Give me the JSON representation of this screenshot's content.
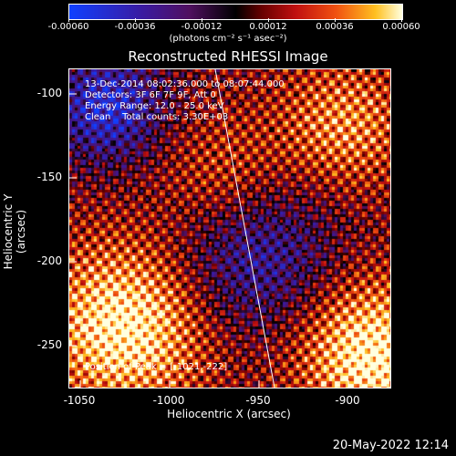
{
  "colorbar": {
    "ticks": [
      "-0.00060",
      "-0.00036",
      "-0.00012",
      "0.00012",
      "0.00036",
      "0.00060"
    ],
    "units": "(photons cm⁻² s⁻¹ asec⁻²)"
  },
  "plot": {
    "title": "Reconstructed RHESSI Image",
    "info": [
      "13-Dec-2014 08:02:36.000 to 08:07:44.000",
      "Detectors: 3F 6F 7F 9F, Att 0",
      "Energy Range: 12.0 - 25.0 keV",
      "Clean    Total counts: 3.30E+03"
    ],
    "peak": "Position of Peak = [-1021,-222]",
    "xlabel": "Heliocentric X (arcsec)",
    "ylabel": "Heliocentric Y (arcsec)",
    "xticks": [
      "-1050",
      "-1000",
      "-950",
      "-900"
    ],
    "yticks": [
      "-100",
      "-150",
      "-200",
      "-250"
    ]
  },
  "footer": {
    "date": "20-May-2022 12:14"
  }
}
